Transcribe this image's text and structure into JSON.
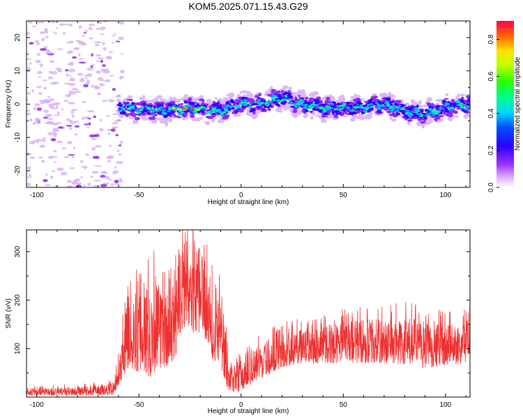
{
  "title": "KOM5.2025.071.15.43.G29",
  "chart_data": [
    {
      "id": "spectrogram",
      "type": "heatmap",
      "xlabel": "Height of straight line (km)",
      "ylabel": "Frequency (Hz)",
      "xlim": [
        -105,
        112
      ],
      "ylim": [
        -25,
        25
      ],
      "xticks": [
        -100,
        -50,
        0,
        50,
        100
      ],
      "yticks": [
        -20,
        -10,
        0,
        10,
        20
      ],
      "noise_region_x": [
        -105,
        -60
      ],
      "signal_region_x": [
        -60,
        112
      ],
      "ridge": {
        "x": [
          -60,
          -50,
          -40,
          -30,
          -25,
          -20,
          -10,
          0,
          10,
          20,
          30,
          40,
          50,
          60,
          70,
          80,
          90,
          100,
          112
        ],
        "y": [
          -1,
          -1.5,
          -2,
          -1.5,
          -1,
          -1.5,
          -2,
          0,
          0,
          2,
          0,
          -1,
          -1,
          -1,
          0,
          -2,
          -3,
          -1,
          0
        ]
      },
      "colorbar": {
        "label": "Normalized spectral amplitude",
        "range": [
          0,
          0.9
        ],
        "ticks": [
          0.0,
          0.2,
          0.4,
          0.6,
          0.8
        ]
      }
    },
    {
      "id": "snr",
      "type": "line",
      "xlabel": "Height of straight line (km)",
      "ylabel": "SNR (v/v)",
      "xlim": [
        -105,
        112
      ],
      "ylim": [
        0,
        345
      ],
      "xticks": [
        -100,
        -50,
        0,
        50,
        100
      ],
      "yticks": [
        100,
        200,
        300
      ],
      "color": "#ee3030",
      "envelope": {
        "x": [
          -105,
          -90,
          -75,
          -62,
          -58,
          -55,
          -50,
          -45,
          -40,
          -35,
          -30,
          -27,
          -25,
          -22,
          -19,
          -15,
          -10,
          -7,
          -6,
          0,
          10,
          20,
          30,
          40,
          50,
          60,
          70,
          80,
          90,
          100,
          112
        ],
        "low": [
          3,
          3,
          3,
          5,
          40,
          60,
          50,
          40,
          60,
          60,
          100,
          150,
          140,
          120,
          140,
          80,
          60,
          20,
          10,
          10,
          40,
          60,
          70,
          70,
          70,
          70,
          70,
          65,
          60,
          65,
          70
        ],
        "high": [
          18,
          20,
          22,
          30,
          140,
          230,
          210,
          250,
          230,
          210,
          290,
          335,
          280,
          300,
          315,
          250,
          200,
          120,
          60,
          80,
          110,
          130,
          140,
          150,
          155,
          165,
          160,
          165,
          160,
          150,
          160
        ]
      },
      "peak": {
        "x": -23.5,
        "y": 345
      }
    }
  ]
}
